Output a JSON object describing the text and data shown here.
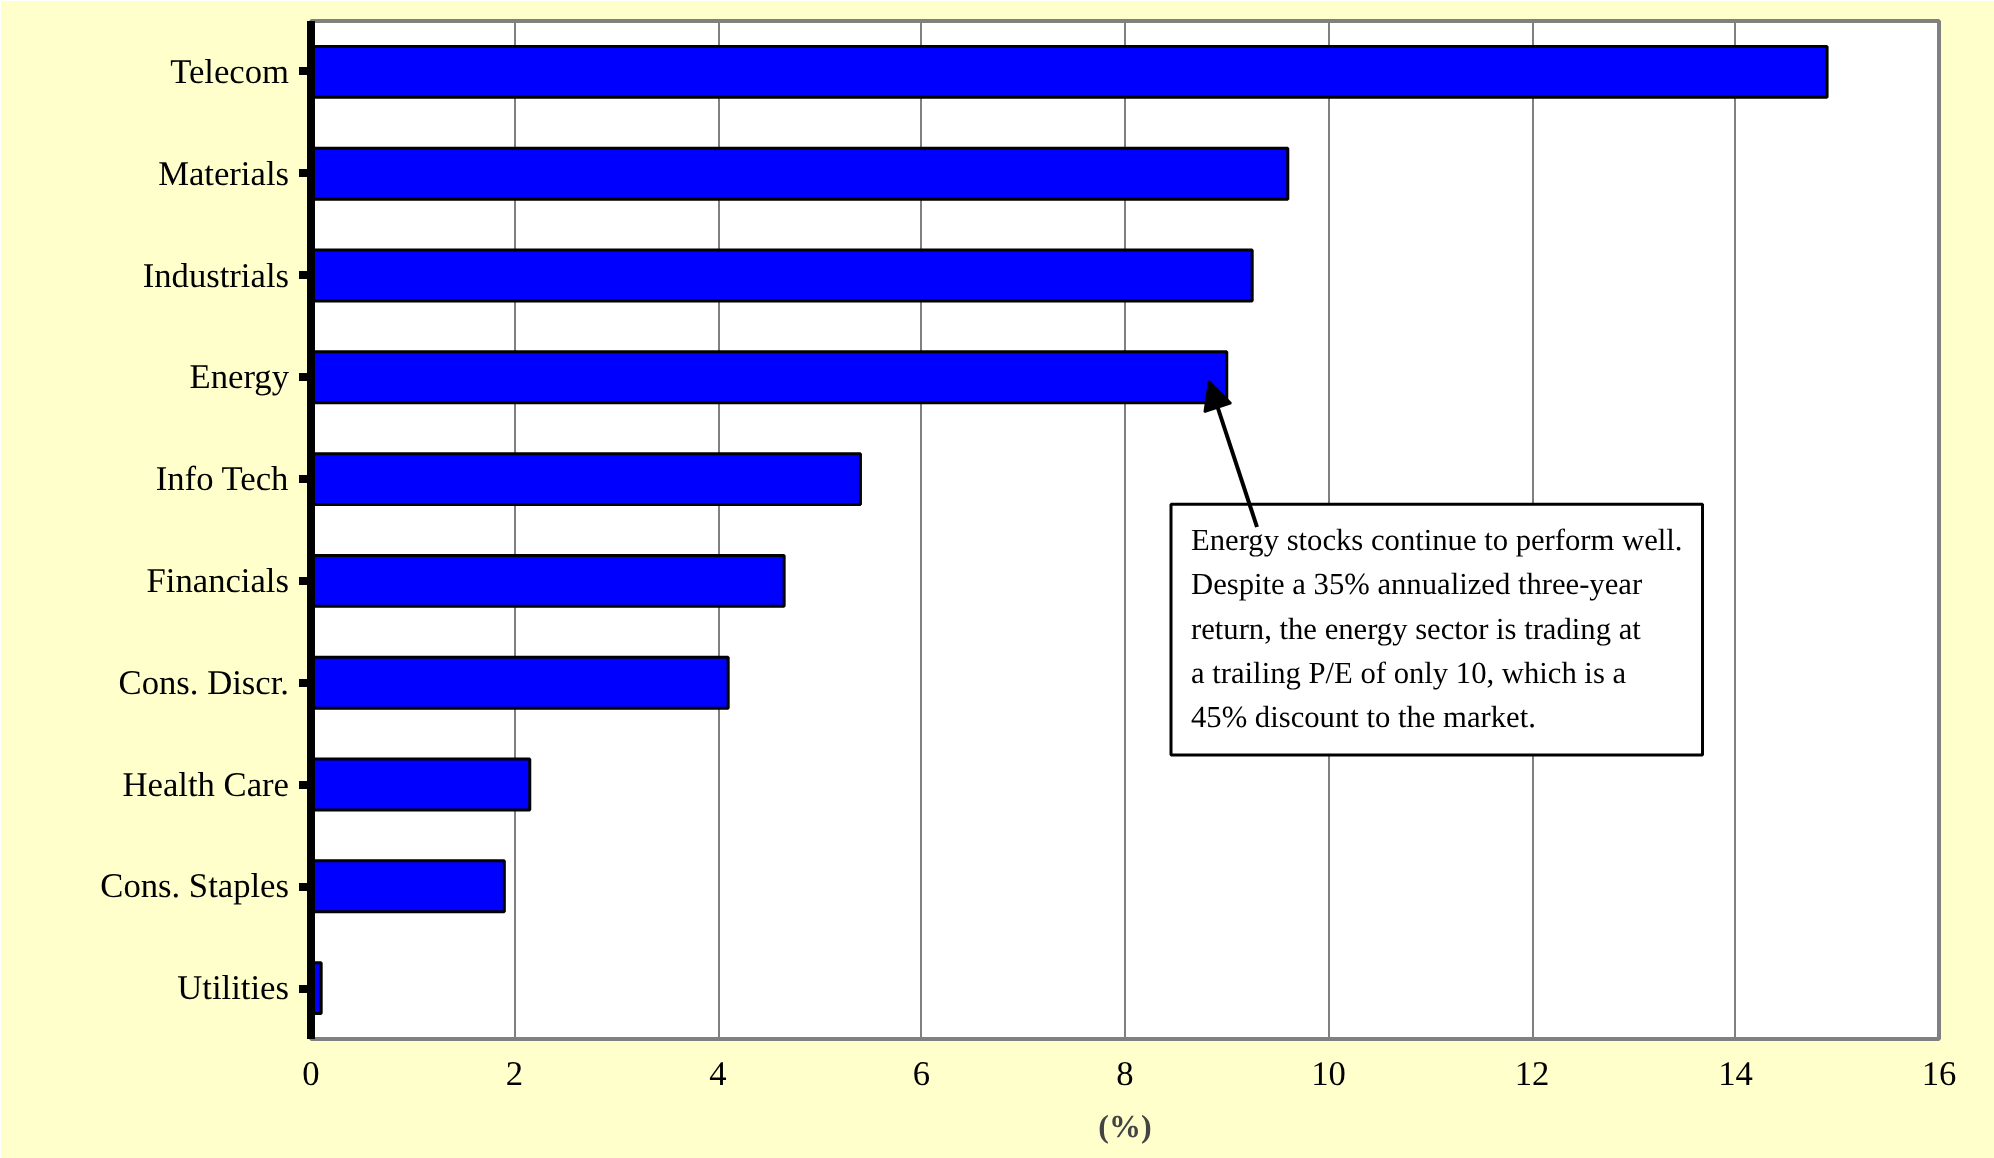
{
  "chart_data": {
    "type": "bar",
    "orientation": "horizontal",
    "categories": [
      "Telecom",
      "Materials",
      "Industrials",
      "Energy",
      "Info Tech",
      "Financials",
      "Cons. Discr.",
      "Health Care",
      "Cons. Staples",
      "Utilities"
    ],
    "values": [
      14.9,
      9.6,
      9.25,
      9.0,
      5.4,
      4.65,
      4.1,
      2.15,
      1.9,
      0.1
    ],
    "color": "#0000ff",
    "xlabel": "(%)",
    "xlim": [
      0,
      16
    ],
    "xticks": [
      0,
      2,
      4,
      6,
      8,
      10,
      12,
      14,
      16
    ],
    "grid": "x",
    "annotations": [
      "Energy stocks continue to perform well.  Despite a 35% annualized three-year return, the energy sector is trading at a trailing P/E of only 10, which is a 45% discount to the market."
    ]
  }
}
